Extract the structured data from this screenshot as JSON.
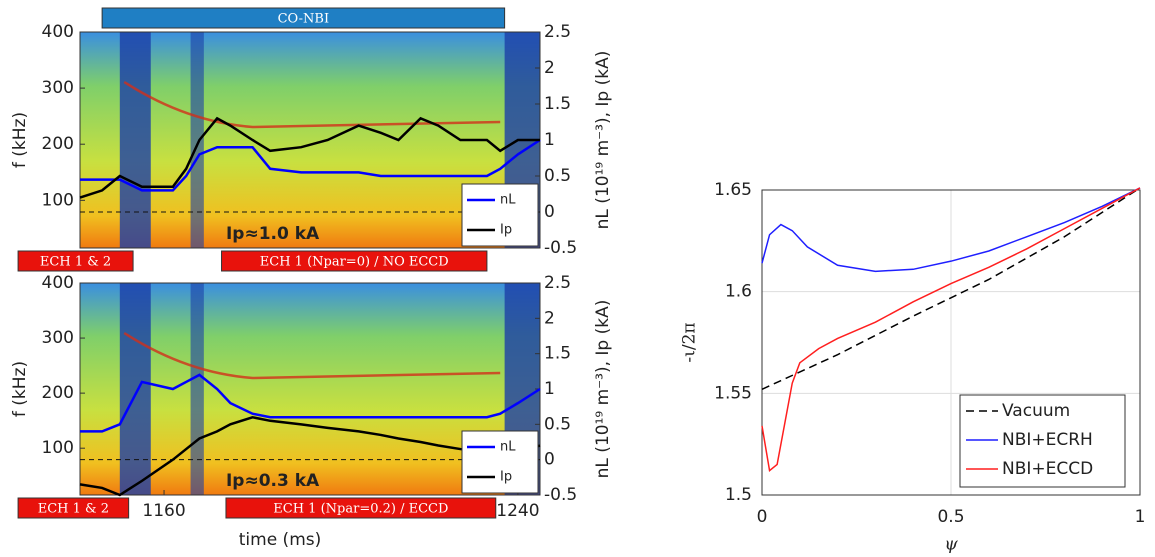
{
  "chart_data": [
    {
      "type": "spectrogram",
      "ylabel": "f (kHz)",
      "y2label": "nL (10¹⁹ m⁻³), Ip (kA)",
      "xlim": [
        1141,
        1245
      ],
      "ylim": [
        15,
        400
      ],
      "yticks": [
        100,
        200,
        300,
        400
      ],
      "y2lim": [
        -0.5,
        2.5
      ],
      "y2ticks": [
        -0.5,
        0,
        0.5,
        1,
        1.5,
        2,
        2.5
      ],
      "ref_line": 0,
      "x": [
        1141,
        1146,
        1150,
        1155,
        1162,
        1165,
        1168,
        1172,
        1175,
        1180,
        1184,
        1191,
        1197,
        1204,
        1209,
        1213,
        1218,
        1222,
        1227,
        1233,
        1236,
        1240,
        1245
      ],
      "series": [
        {
          "name": "nL",
          "color": "#0000ff",
          "axis": "y2",
          "values": [
            0.45,
            0.45,
            0.45,
            0.3,
            0.3,
            0.5,
            0.8,
            0.9,
            0.9,
            0.9,
            0.6,
            0.55,
            0.55,
            0.55,
            0.5,
            0.5,
            0.5,
            0.5,
            0.5,
            0.5,
            0.6,
            0.8,
            1.0
          ]
        },
        {
          "name": "Ip",
          "color": "#000000",
          "axis": "y2",
          "values": [
            0.2,
            0.3,
            0.5,
            0.35,
            0.35,
            0.6,
            1.0,
            1.3,
            1.2,
            1.0,
            0.85,
            0.9,
            1.0,
            1.2,
            1.1,
            1.0,
            1.3,
            1.2,
            1.0,
            1.0,
            0.85,
            1.0,
            1.0
          ]
        }
      ],
      "annotation": "Ip≈1.0 kA",
      "bars_above": [
        {
          "label": "CO-NBI",
          "span": [
            1146,
            1237
          ],
          "color": "#1f7fc4"
        }
      ],
      "bars_below": [
        {
          "label": "ECH 1 & 2",
          "span": [
            1127,
            1153
          ],
          "color": "#e8120c"
        },
        {
          "label": "ECH 1 (Npar=0) / NO ECCD",
          "span": [
            1173,
            1233
          ],
          "color": "#e8120c"
        }
      ]
    },
    {
      "type": "spectrogram",
      "ylabel": "f (kHz)",
      "y2label": "nL (10¹⁹ m⁻³), Ip (kA)",
      "xlabel": "time (ms)",
      "xlim": [
        1141,
        1245
      ],
      "xticks": [
        1160,
        1240
      ],
      "ylim": [
        15,
        400
      ],
      "yticks": [
        100,
        200,
        300,
        400
      ],
      "y2lim": [
        -0.5,
        2.5
      ],
      "y2ticks": [
        -0.5,
        0,
        0.5,
        1,
        1.5,
        2,
        2.5
      ],
      "ref_line": 0,
      "x": [
        1141,
        1146,
        1150,
        1155,
        1162,
        1165,
        1168,
        1172,
        1175,
        1180,
        1184,
        1191,
        1197,
        1204,
        1209,
        1213,
        1218,
        1222,
        1227,
        1233,
        1236,
        1240,
        1245
      ],
      "series": [
        {
          "name": "nL",
          "color": "#0000ff",
          "axis": "y2",
          "values": [
            0.4,
            0.4,
            0.5,
            1.1,
            1.0,
            1.1,
            1.2,
            1.0,
            0.8,
            0.65,
            0.6,
            0.6,
            0.6,
            0.6,
            0.6,
            0.6,
            0.6,
            0.6,
            0.6,
            0.6,
            0.65,
            0.8,
            1.0
          ]
        },
        {
          "name": "Ip",
          "color": "#000000",
          "axis": "y2",
          "values": [
            -0.35,
            -0.4,
            -0.5,
            -0.3,
            0,
            0.15,
            0.3,
            0.4,
            0.5,
            0.6,
            0.55,
            0.5,
            0.45,
            0.4,
            0.35,
            0.3,
            0.25,
            0.2,
            0.15,
            0.1,
            0.05,
            0.1,
            0.2
          ]
        }
      ],
      "annotation": "Ip≈0.3 kA",
      "bars_below": [
        {
          "label": "ECH 1 & 2",
          "span": [
            1127,
            1152
          ],
          "color": "#e8120c"
        },
        {
          "label": "ECH 1 (Npar=0.2) / ECCD",
          "span": [
            1174,
            1235
          ],
          "color": "#e8120c"
        }
      ]
    },
    {
      "type": "line",
      "xlabel": "ψ",
      "ylabel": "-ι/2π",
      "xlim": [
        0,
        1
      ],
      "xticks": [
        0,
        0.5,
        1
      ],
      "ylim": [
        1.5,
        1.65
      ],
      "yticks": [
        1.5,
        1.55,
        1.6,
        1.65
      ],
      "grid": true,
      "legend": "lower right",
      "series": [
        {
          "name": "Vacuum",
          "color": "#000000",
          "style": "dashed",
          "x": [
            0,
            0.2,
            0.4,
            0.6,
            0.8,
            1
          ],
          "values": [
            1.552,
            1.569,
            1.588,
            1.606,
            1.627,
            1.651
          ]
        },
        {
          "name": "NBI+ECRH",
          "color": "#1f1fff",
          "style": "solid",
          "x": [
            0,
            0.02,
            0.05,
            0.08,
            0.12,
            0.2,
            0.3,
            0.4,
            0.5,
            0.6,
            0.7,
            0.8,
            0.9,
            1
          ],
          "values": [
            1.614,
            1.628,
            1.633,
            1.63,
            1.622,
            1.613,
            1.61,
            1.611,
            1.615,
            1.62,
            1.627,
            1.634,
            1.642,
            1.651
          ]
        },
        {
          "name": "NBI+ECCD",
          "color": "#ff1f1f",
          "style": "solid",
          "x": [
            0,
            0.02,
            0.04,
            0.06,
            0.08,
            0.1,
            0.15,
            0.2,
            0.3,
            0.4,
            0.5,
            0.6,
            0.7,
            0.8,
            0.9,
            1
          ],
          "values": [
            1.534,
            1.512,
            1.515,
            1.535,
            1.555,
            1.565,
            1.572,
            1.577,
            1.585,
            1.595,
            1.604,
            1.612,
            1.621,
            1.631,
            1.641,
            1.651
          ]
        }
      ]
    }
  ]
}
